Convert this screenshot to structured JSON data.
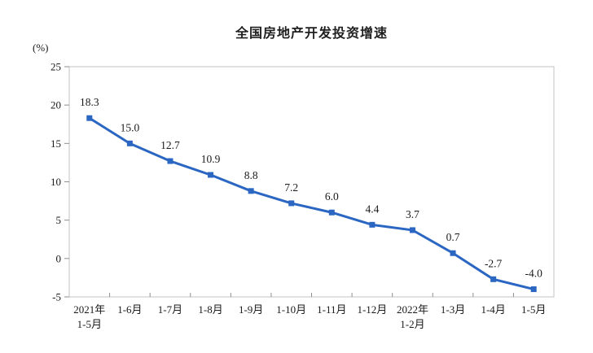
{
  "chart_data": {
    "type": "line",
    "title": "全国房地产开发投资增速",
    "unit_label": "(%)",
    "categories": [
      "2021年\n1-5月",
      "1-6月",
      "1-7月",
      "1-8月",
      "1-9月",
      "1-10月",
      "1-11月",
      "1-12月",
      "2022年\n1-2月",
      "1-3月",
      "1-4月",
      "1-5月"
    ],
    "values": [
      18.3,
      15.0,
      12.7,
      10.9,
      8.8,
      7.2,
      6.0,
      4.4,
      3.7,
      0.7,
      -2.7,
      -4.0
    ],
    "data_labels": [
      "18.3",
      "15.0",
      "12.7",
      "10.9",
      "8.8",
      "7.2",
      "6.0",
      "4.4",
      "3.7",
      "0.7",
      "-2.7",
      "-4.0"
    ],
    "ylabel": "",
    "xlabel": "",
    "ylim": [
      -5,
      25
    ],
    "yticks": [
      25,
      20,
      15,
      10,
      5,
      0,
      -5
    ],
    "grid": false,
    "legend_position": "none",
    "colors": {
      "line": "#2a66c2",
      "marker": "#2a66c2",
      "plot_border": "#c3c3c3",
      "tick": "#8f8f8f",
      "text": "#1a1a1a",
      "background": "#ffffff"
    }
  }
}
